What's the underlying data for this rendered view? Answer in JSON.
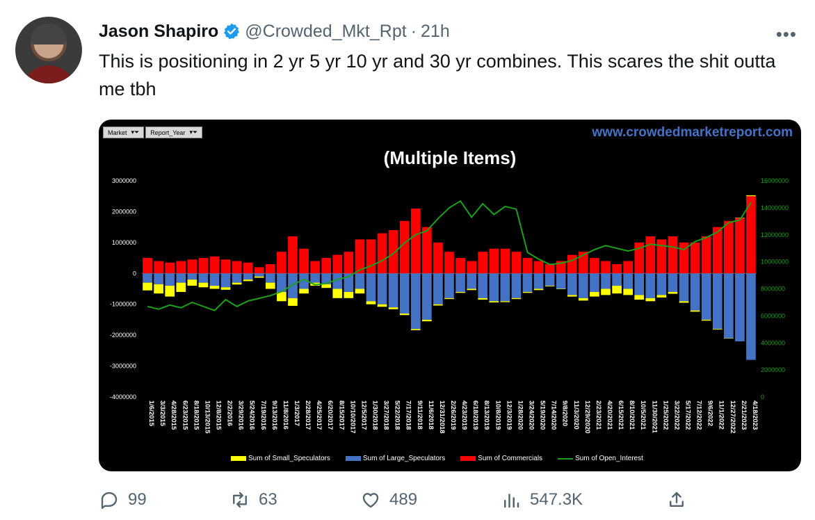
{
  "author": {
    "name": "Jason Shapiro",
    "handle": "@Crowded_Mkt_Rpt",
    "separator": "·",
    "time": "21h"
  },
  "tweet": {
    "text": "This is positioning in 2 yr 5 yr 10 yr and 30 yr combines.  This scares the shit outta me tbh"
  },
  "media": {
    "filters": [
      "Market",
      "Report_Year"
    ],
    "site": "www.crowdedmarketreport.com",
    "title": "(Multiple Items)"
  },
  "chart_data": {
    "type": "bar",
    "title": "(Multiple Items)",
    "left_axis": {
      "ticks": [
        "3000000",
        "2000000",
        "1000000",
        "0",
        "-1000000",
        "-2000000",
        "-3000000",
        "-4000000"
      ],
      "ylim": [
        -4000000,
        3000000
      ]
    },
    "right_axis": {
      "ticks": [
        "16000000",
        "14000000",
        "12000000",
        "10000000",
        "8000000",
        "6000000",
        "4000000",
        "2000000",
        "0"
      ],
      "ylim": [
        0,
        16000000
      ]
    },
    "x_tick_labels": [
      "1/6/2015",
      "3/3/2015",
      "4/28/2015",
      "6/23/2015",
      "8/18/2015",
      "10/13/2015",
      "12/8/2015",
      "2/2/2016",
      "3/29/2016",
      "5/24/2016",
      "7/19/2016",
      "9/13/2016",
      "11/8/2016",
      "1/3/2017",
      "2/28/2017",
      "4/25/2017",
      "6/20/2017",
      "8/15/2017",
      "10/10/2017",
      "12/5/2017",
      "1/30/2018",
      "3/27/2018",
      "5/22/2018",
      "7/17/2018",
      "9/11/2018",
      "11/6/2018",
      "12/31/2018",
      "2/26/2019",
      "4/23/2019",
      "6/18/2019",
      "8/13/2019",
      "10/8/2019",
      "12/3/2019",
      "1/28/2020",
      "3/24/2020",
      "5/19/2020",
      "7/14/2020",
      "9/8/2020",
      "11/3/2020",
      "12/29/2020",
      "2/23/2021",
      "4/20/2021",
      "6/15/2021",
      "8/10/2021",
      "10/5/2021",
      "11/30/2021",
      "1/25/2022",
      "3/22/2022",
      "5/17/2022",
      "7/12/2022",
      "9/6/2022",
      "11/1/2022",
      "12/27/2022",
      "2/21/2023",
      "4/18/2023"
    ],
    "series": [
      {
        "name": "Sum of Small_Speculators",
        "color": "#ffff00",
        "axis": "left",
        "values": [
          -250000,
          -300000,
          -350000,
          -300000,
          -200000,
          -150000,
          -100000,
          -80000,
          -60000,
          -50000,
          -40000,
          -200000,
          -300000,
          -250000,
          -150000,
          -100000,
          -120000,
          -300000,
          -200000,
          -150000,
          -100000,
          -80000,
          -60000,
          -50000,
          -40000,
          -50000,
          -40000,
          -30000,
          -30000,
          -40000,
          -50000,
          -40000,
          -30000,
          -30000,
          -30000,
          -40000,
          -20000,
          -10000,
          -50000,
          -80000,
          -150000,
          -200000,
          -250000,
          -200000,
          -150000,
          -100000,
          -80000,
          -60000,
          -50000,
          -40000,
          -30000,
          -20000,
          -10000,
          0,
          30000
        ]
      },
      {
        "name": "Sum of Large_Speculators",
        "color": "#4472c4",
        "axis": "left",
        "values": [
          -300000,
          -350000,
          -400000,
          -300000,
          -200000,
          -300000,
          -400000,
          -450000,
          -300000,
          -200000,
          -100000,
          -300000,
          -600000,
          -800000,
          -500000,
          -300000,
          -350000,
          -500000,
          -600000,
          -500000,
          -900000,
          -1000000,
          -1100000,
          -1300000,
          -1800000,
          -1500000,
          -1000000,
          -800000,
          -600000,
          -500000,
          -800000,
          -900000,
          -900000,
          -800000,
          -600000,
          -500000,
          -400000,
          -500000,
          -700000,
          -800000,
          -600000,
          -500000,
          -400000,
          -500000,
          -700000,
          -800000,
          -700000,
          -600000,
          -900000,
          -1200000,
          -1500000,
          -1800000,
          -2100000,
          -2200000,
          -2800000
        ]
      },
      {
        "name": "Sum of Commercials",
        "color": "#ff0000",
        "axis": "left",
        "values": [
          500000,
          400000,
          350000,
          400000,
          450000,
          500000,
          550000,
          450000,
          400000,
          350000,
          200000,
          300000,
          700000,
          1200000,
          800000,
          400000,
          500000,
          600000,
          700000,
          1100000,
          1100000,
          1300000,
          1400000,
          1700000,
          2100000,
          1500000,
          1000000,
          700000,
          500000,
          400000,
          700000,
          800000,
          800000,
          700000,
          500000,
          400000,
          300000,
          400000,
          600000,
          700000,
          500000,
          400000,
          300000,
          400000,
          1000000,
          1200000,
          1100000,
          1200000,
          1000000,
          1000000,
          1200000,
          1500000,
          1700000,
          1800000,
          2500000
        ]
      },
      {
        "name": "Sum of Open_Interest",
        "color": "#1aa11a",
        "axis": "right",
        "type": "line",
        "values": [
          6700000,
          6500000,
          6800000,
          6600000,
          7000000,
          6700000,
          6400000,
          7200000,
          6700000,
          7100000,
          7300000,
          7500000,
          7800000,
          8300000,
          8700000,
          8300000,
          8400000,
          8700000,
          8900000,
          9400000,
          9700000,
          10100000,
          10600000,
          11400000,
          12000000,
          12300000,
          13200000,
          14000000,
          14500000,
          13300000,
          14300000,
          13500000,
          14100000,
          13900000,
          10700000,
          10200000,
          9800000,
          9900000,
          10100000,
          10500000,
          10900000,
          11200000,
          11000000,
          10800000,
          11000000,
          11300000,
          11200000,
          11100000,
          10900000,
          11500000,
          11800000,
          12200000,
          12900000,
          13100000,
          14400000
        ]
      }
    ],
    "grid": false,
    "legend_position": "bottom"
  },
  "actions": {
    "replies": "99",
    "retweets": "63",
    "likes": "489",
    "views": "547.3K"
  }
}
